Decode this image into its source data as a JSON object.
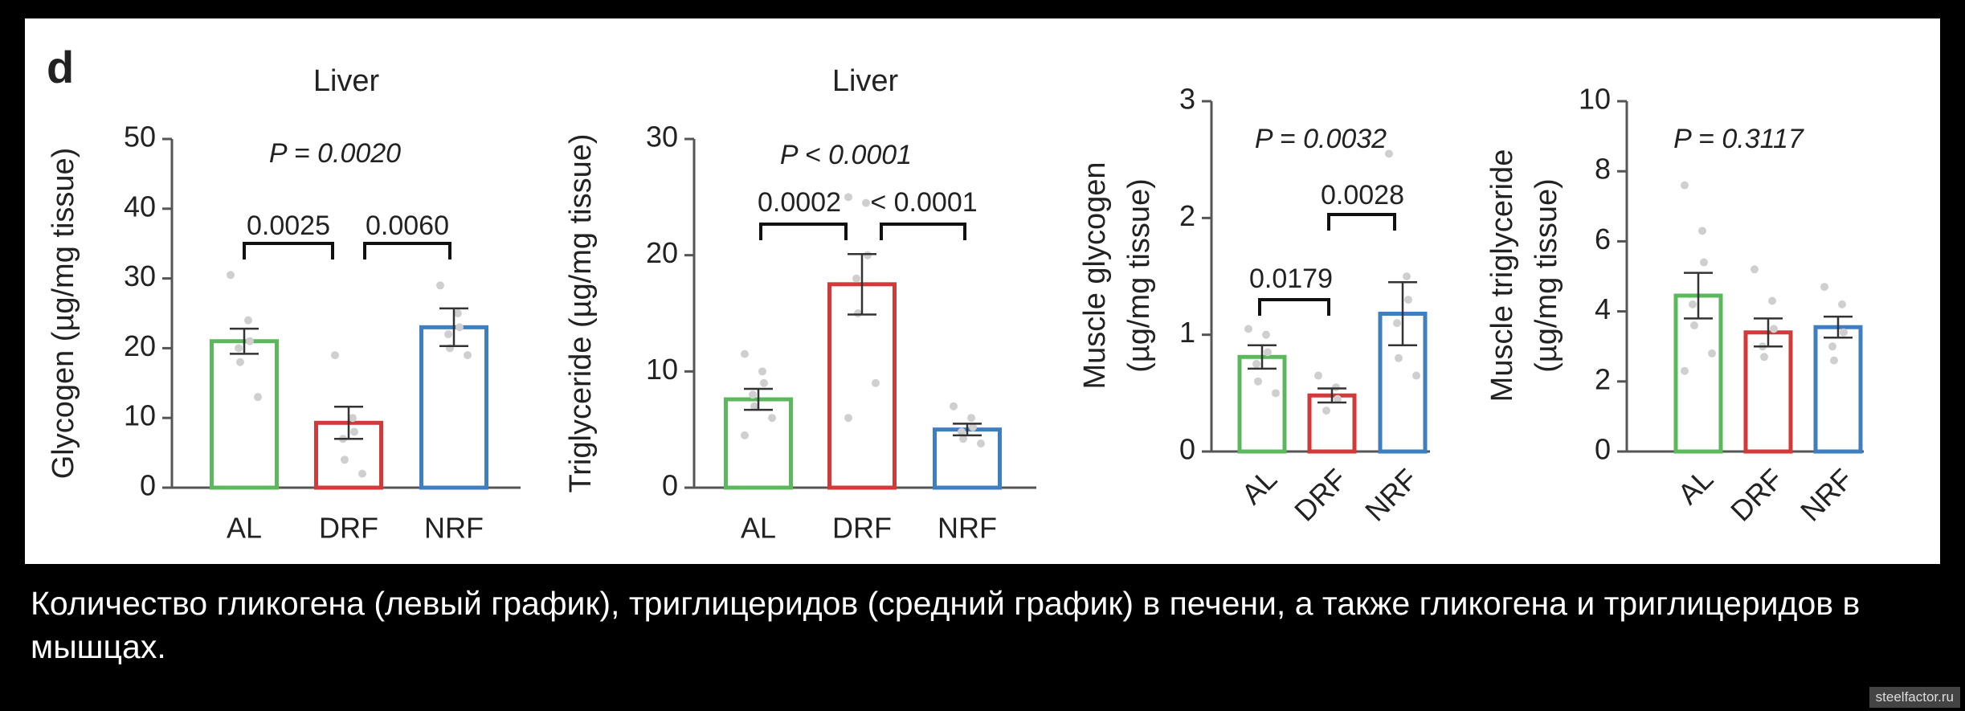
{
  "panel_label": "d",
  "caption": "Количество гликогена (левый график), триглицеридов (средний график) в печени, а также гликогена и триглицеридов в мышцах.",
  "watermark": "steelfactor.ru",
  "chart_data": [
    {
      "type": "bar",
      "title": "Liver",
      "ylabel": [
        "Glycogen (µg/mg tissue)"
      ],
      "categories": [
        "AL",
        "DRF",
        "NRF"
      ],
      "colors": [
        "#5cb85c",
        "#d03a3a",
        "#3f7fc0"
      ],
      "values": [
        21,
        9.3,
        23
      ],
      "errors": [
        1.8,
        2.3,
        2.7
      ],
      "points": [
        [
          30.5,
          24,
          21,
          20,
          18,
          13
        ],
        [
          19,
          10,
          8,
          7,
          4,
          2
        ],
        [
          29,
          25,
          23,
          22,
          20,
          19
        ]
      ],
      "ylim": [
        0,
        50
      ],
      "yticks": [
        0,
        10,
        20,
        30,
        40,
        50
      ],
      "annotations": [
        "P = 0.0020",
        "0.0025",
        "0.0060"
      ]
    },
    {
      "type": "bar",
      "title": "Liver",
      "ylabel": [
        "Triglyceride (µg/mg tissue)"
      ],
      "categories": [
        "AL",
        "DRF",
        "NRF"
      ],
      "colors": [
        "#5cb85c",
        "#d03a3a",
        "#3f7fc0"
      ],
      "values": [
        7.6,
        17.5,
        5.0
      ],
      "errors": [
        0.9,
        2.6,
        0.5
      ],
      "points": [
        [
          11.5,
          10,
          9,
          8,
          7,
          6,
          4.5
        ],
        [
          25,
          24.5,
          20,
          18,
          15,
          9,
          6
        ],
        [
          7,
          6,
          5.2,
          4.8,
          4.2,
          3.8
        ]
      ],
      "ylim": [
        0,
        30
      ],
      "yticks": [
        0,
        10,
        20,
        30
      ],
      "annotations": [
        "P < 0.0001",
        "0.0002",
        "< 0.0001"
      ]
    },
    {
      "type": "bar",
      "ylabel": [
        "Muscle glycogen",
        "(µg/mg tissue)"
      ],
      "categories": [
        "AL",
        "DRF",
        "NRF"
      ],
      "colors": [
        "#5cb85c",
        "#d03a3a",
        "#3f7fc0"
      ],
      "values": [
        0.81,
        0.48,
        1.18
      ],
      "errors": [
        0.1,
        0.06,
        0.27
      ],
      "points": [
        [
          1.05,
          1.0,
          0.85,
          0.75,
          0.6,
          0.5
        ],
        [
          0.65,
          0.55,
          0.45,
          0.35
        ],
        [
          2.55,
          1.5,
          1.3,
          1.1,
          0.8,
          0.65
        ]
      ],
      "ylim": [
        0,
        3
      ],
      "yticks": [
        0,
        1,
        2,
        3
      ],
      "annotations": [
        "P = 0.0032",
        "0.0179",
        "0.0028"
      ]
    },
    {
      "type": "bar",
      "ylabel": [
        "Muscle triglyceride",
        "(µg/mg tissue)"
      ],
      "categories": [
        "AL",
        "DRF",
        "NRF"
      ],
      "colors": [
        "#5cb85c",
        "#d03a3a",
        "#3f7fc0"
      ],
      "values": [
        4.45,
        3.4,
        3.55
      ],
      "errors": [
        0.65,
        0.4,
        0.3
      ],
      "points": [
        [
          7.6,
          6.3,
          5.4,
          4.2,
          3.6,
          2.8,
          2.3
        ],
        [
          5.2,
          4.3,
          3.5,
          3.0,
          2.7
        ],
        [
          4.7,
          4.2,
          3.4,
          3.0,
          2.6
        ]
      ],
      "ylim": [
        0,
        10
      ],
      "yticks": [
        0,
        2,
        4,
        6,
        8,
        10
      ],
      "annotations": [
        "P = 0.3117"
      ]
    }
  ]
}
